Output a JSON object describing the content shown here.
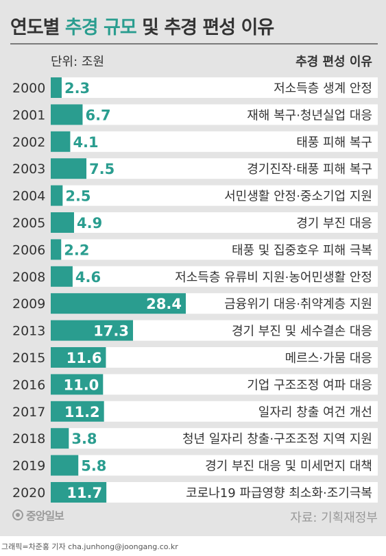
{
  "header": {
    "title_plain": "연도별 ",
    "title_highlight": "추경 규모",
    "title_rest": " 및 추경 편성 이유",
    "unit": "단위: 조원",
    "reason_column": "추경 편성 이유"
  },
  "footer": {
    "logo_text": "중앙일보",
    "source": "자료: 기획재정부",
    "credit": "그래픽=차준홍 기자 cha.junhong@joongang.co.kr"
  },
  "colors": {
    "bar": "#2a9d8f",
    "row_bg": "#ffffff",
    "panel_bg": "#e4e4e4",
    "value_on_bar": "#ffffff",
    "value_off_bar": "#2a9d8f"
  },
  "chart_data": {
    "type": "bar",
    "orientation": "horizontal",
    "title": "연도별 추경 규모 및 추경 편성 이유",
    "unit": "조원",
    "categories": [
      "2000",
      "2001",
      "2002",
      "2003",
      "2004",
      "2005",
      "2006",
      "2008",
      "2009",
      "2013",
      "2015",
      "2016",
      "2017",
      "2018",
      "2019",
      "2020"
    ],
    "values": [
      2.3,
      6.7,
      4.1,
      7.5,
      2.5,
      4.9,
      2.2,
      4.6,
      28.4,
      17.3,
      11.6,
      11.0,
      11.2,
      3.8,
      5.8,
      11.7
    ],
    "value_labels": [
      "2.3",
      "6.7",
      "4.1",
      "7.5",
      "2.5",
      "4.9",
      "2.2",
      "4.6",
      "28.4",
      "17.3",
      "11.6",
      "11.0",
      "11.2",
      "3.8",
      "5.8",
      "11.7"
    ],
    "reasons": [
      "저소득층 생계 안정",
      "재해 복구·청년실업 대응",
      "태풍 피해 복구",
      "경기진작·태풍 피해 복구",
      "서민생활 안정·중소기업 지원",
      "경기 부진 대응",
      "태풍 및 집중호우 피해 극복",
      "저소득층 유류비 지원·농어민생활 안정",
      "금융위기 대응·취약계층 지원",
      "경기 부진 및 세수결손 대응",
      "메르스·가뭄 대응",
      "기업 구조조정 여파 대응",
      "일자리 창출 여건 개선",
      "청년 일자리 창출·구조조정 지역 지원",
      "경기 부진 대응 및 미세먼지 대책",
      "코로나19 파급영향 최소화·조기극복"
    ],
    "xlim": [
      0,
      28.4
    ],
    "grid": false,
    "legend": "none"
  }
}
